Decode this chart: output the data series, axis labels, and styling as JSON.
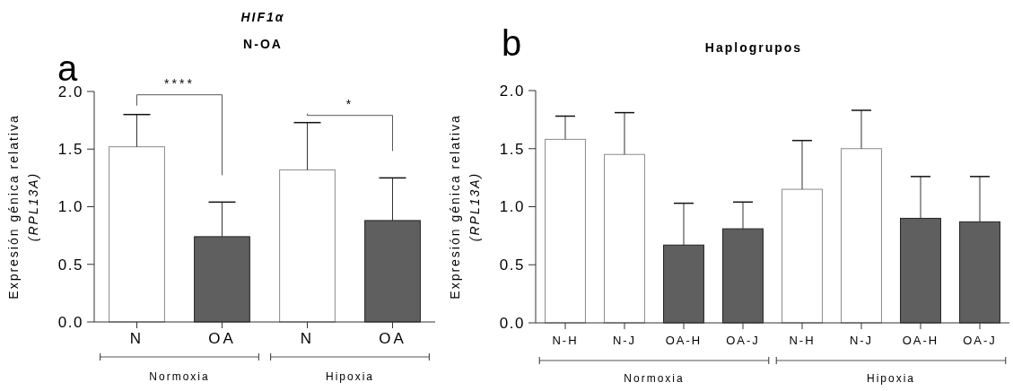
{
  "chart_data": [
    {
      "type": "bar",
      "title": "HIF1α",
      "subtitle": "N-OA",
      "ylabel": "Expresión génica relativa\n(RPL13A)",
      "categories": [
        "N",
        "OA",
        "N",
        "OA"
      ],
      "values": [
        1.52,
        0.74,
        1.32,
        0.88
      ],
      "errors": [
        0.28,
        0.3,
        0.41,
        0.37
      ],
      "colors": [
        "#ffffff",
        "#5f5f5f",
        "#ffffff",
        "#5f5f5f"
      ],
      "ylim": [
        0,
        2
      ],
      "yticks": [
        {
          "value": 0,
          "label": "0.0"
        },
        {
          "value": 0.5,
          "label": "0.5"
        },
        {
          "value": 1,
          "label": "1.0"
        },
        {
          "value": 1.5,
          "label": "1.5"
        },
        {
          "value": 2,
          "label": "2.0"
        }
      ],
      "annotations": [
        "a",
        "Normoxia",
        "Hipoxia",
        "****",
        "*"
      ]
    },
    {
      "type": "bar",
      "title": "Haplogrupos",
      "ylabel": "Expresión génica relativa\n(RPL13A)",
      "categories": [
        "N-H",
        "N-J",
        "OA-H",
        "OA-J",
        "N-H",
        "N-J",
        "OA-H",
        "OA-J"
      ],
      "values": [
        1.58,
        1.45,
        0.67,
        0.81,
        1.15,
        1.5,
        0.9,
        0.87
      ],
      "errors": [
        0.2,
        0.36,
        0.36,
        0.23,
        0.42,
        0.33,
        0.36,
        0.39
      ],
      "colors": [
        "#ffffff",
        "#ffffff",
        "#5f5f5f",
        "#5f5f5f",
        "#ffffff",
        "#ffffff",
        "#5f5f5f",
        "#5f5f5f"
      ],
      "ylim": [
        0,
        2
      ],
      "yticks": [
        {
          "value": 0,
          "label": "0.0"
        },
        {
          "value": 0.5,
          "label": "0.5"
        },
        {
          "value": 1,
          "label": "1.0"
        },
        {
          "value": 1.5,
          "label": "1.5"
        },
        {
          "value": 2,
          "label": "2.0"
        }
      ],
      "annotations": [
        "b",
        "Normoxia",
        "Hipoxia"
      ]
    }
  ]
}
